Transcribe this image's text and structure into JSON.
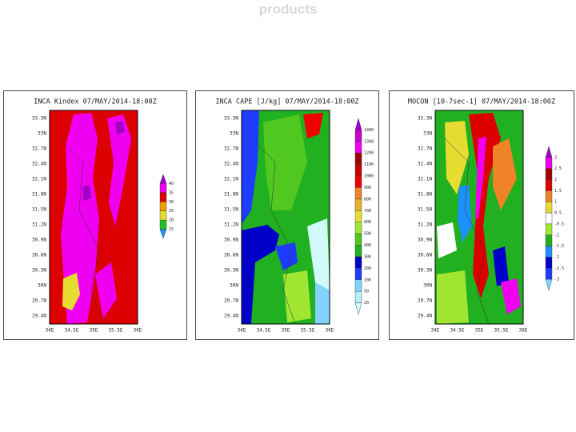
{
  "header": {
    "title": "products"
  },
  "panels": [
    {
      "title": "INCA Kindex 07/MAY/2014-18:00Z",
      "lat_labels": [
        "33.3N",
        "33N",
        "32.7N",
        "32.4N",
        "32.1N",
        "31.8N",
        "31.5N",
        "31.2N",
        "30.9N",
        "30.6N",
        "30.3N",
        "30N",
        "29.7N",
        "29.4N"
      ],
      "lon_labels": [
        "34E",
        "34.5E",
        "35E",
        "35.5E",
        "36E"
      ],
      "colorbar": {
        "labels": [
          "40",
          "35",
          "30",
          "25",
          "20",
          "15"
        ],
        "colors": [
          "#a000c8",
          "#f000f0",
          "#dc0000",
          "#f0a000",
          "#e6dc32",
          "#20c020",
          "#1e90ff"
        ]
      }
    },
    {
      "title": "INCA CAPE [J/kg] 07/MAY/2014-18:00Z",
      "lat_labels": [
        "33.3N",
        "33N",
        "32.7N",
        "32.4N",
        "32.1N",
        "31.8N",
        "31.5N",
        "31.2N",
        "30.9N",
        "30.6N",
        "30.3N",
        "30N",
        "29.7N",
        "29.4N"
      ],
      "lon_labels": [
        "34E",
        "34.5E",
        "35E",
        "35.5E",
        "36E"
      ],
      "colorbar": {
        "labels": [
          "1400",
          "1300",
          "1200",
          "1100",
          "1000",
          "900",
          "800",
          "700",
          "600",
          "500",
          "400",
          "300",
          "200",
          "100",
          "50",
          "20"
        ],
        "colors": [
          "#a000c8",
          "#c800c8",
          "#f000f0",
          "#a00000",
          "#c80000",
          "#f00000",
          "#f08228",
          "#e6af2d",
          "#e6dc32",
          "#a0e632",
          "#50c820",
          "#20b020",
          "#0000c8",
          "#1e3cff",
          "#82d2ff",
          "#b4f0fa",
          "#d2fafa"
        ]
      }
    },
    {
      "title": "MOCON [10-7sec-1] 07/MAY/2014-18:00Z",
      "lat_labels": [
        "33.3N",
        "33N",
        "32.7N",
        "32.4N",
        "32.1N",
        "31.8N",
        "31.5N",
        "31.2N",
        "30.9N",
        "30.6N",
        "30.3N",
        "30N",
        "29.7N",
        "29.4N"
      ],
      "lon_labels": [
        "34E",
        "34.5E",
        "35E",
        "35.5E",
        "36E"
      ],
      "colorbar": {
        "labels": [
          "3",
          "2.5",
          "2",
          "1.5",
          "1",
          "0.5",
          "-0.5",
          "-1",
          "-1.5",
          "-2",
          "-2.5",
          "-3"
        ],
        "colors": [
          "#a000c8",
          "#f000f0",
          "#a00000",
          "#dc0000",
          "#f08228",
          "#e6dc32",
          "#ffffff",
          "#a0e632",
          "#20b020",
          "#1e90ff",
          "#0000c8",
          "#1e3cff",
          "#82d2ff"
        ]
      }
    }
  ]
}
